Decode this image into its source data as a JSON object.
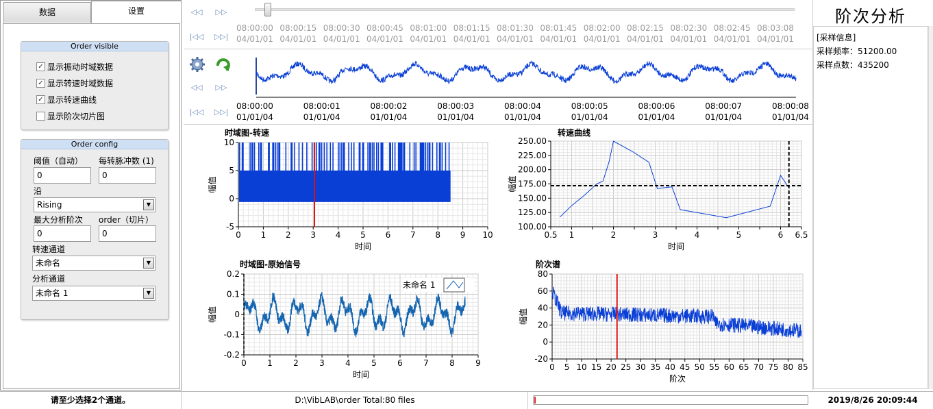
{
  "tabs": {
    "data_label": "数据",
    "settings_label": "设置"
  },
  "order_visible": {
    "title": "Order visible",
    "items": [
      {
        "label": "显示振动时域数据",
        "checked": true
      },
      {
        "label": "显示转速时域数据",
        "checked": true
      },
      {
        "label": "显示转速曲线",
        "checked": true
      },
      {
        "label": "显示阶次切片图",
        "checked": false
      }
    ]
  },
  "order_config": {
    "title": "Order config",
    "threshold_label": "阈值（自动）",
    "threshold_value": "0",
    "pulses_label": "每转脉冲数 (1)",
    "pulses_value": "0",
    "edge_label": "沿",
    "edge_value": "Rising",
    "max_order_label": "最大分析阶次",
    "max_order_value": "0",
    "order_slice_label": "order（切片）",
    "order_slice_value": "0",
    "speed_channel_label": "转速通道",
    "speed_channel_value": "未命名",
    "analysis_channel_label": "分析通道",
    "analysis_channel_value": "未命名 1"
  },
  "nav_top": {
    "ticks": [
      {
        "time": "08:00:00",
        "date": "04/01/01"
      },
      {
        "time": "08:00:15",
        "date": "04/01/01"
      },
      {
        "time": "08:00:30",
        "date": "04/01/01"
      },
      {
        "time": "08:00:45",
        "date": "04/01/01"
      },
      {
        "time": "08:01:00",
        "date": "04/01/01"
      },
      {
        "time": "08:01:15",
        "date": "04/01/01"
      },
      {
        "time": "08:01:30",
        "date": "04/01/01"
      },
      {
        "time": "08:01:45",
        "date": "04/01/01"
      },
      {
        "time": "08:02:00",
        "date": "04/01/01"
      },
      {
        "time": "08:02:15",
        "date": "04/01/01"
      },
      {
        "time": "08:02:30",
        "date": "04/01/01"
      },
      {
        "time": "08:02:45",
        "date": "04/01/01"
      },
      {
        "time": "08:03:08",
        "date": "04/01/01"
      }
    ]
  },
  "nav_wave": {
    "ticks": [
      {
        "time": "08:00:00",
        "date": "01/01/04"
      },
      {
        "time": "08:00:01",
        "date": "01/01/04"
      },
      {
        "time": "08:00:02",
        "date": "01/01/04"
      },
      {
        "time": "08:00:03",
        "date": "01/01/04"
      },
      {
        "time": "08:00:04",
        "date": "01/01/04"
      },
      {
        "time": "08:00:05",
        "date": "01/01/04"
      },
      {
        "time": "08:00:06",
        "date": "01/01/04"
      },
      {
        "time": "08:00:07",
        "date": "01/01/04"
      },
      {
        "time": "08:00:08",
        "date": "01/01/04"
      }
    ]
  },
  "info": {
    "title": "阶次分析",
    "header": "[采样信息]",
    "sample_rate": "采样频率：51200.00",
    "sample_count": "采样点数：435200"
  },
  "status": {
    "message": "请至少选择2个通道。",
    "path": "D:\\VibLAB\\order   Total:80 files",
    "progress": 0.005,
    "datetime": "2019/8/26  20:09:44"
  },
  "colors": {
    "series": "#0a3fd6",
    "cursor": "#e01010",
    "series2": "#1565b0"
  },
  "chart_data": [
    {
      "type": "line",
      "title": "时域图-转速",
      "xlabel": "时间",
      "ylabel": "幅值",
      "xlim": [
        0,
        10
      ],
      "ylim": [
        -5,
        10
      ],
      "xticks": [
        0,
        1,
        2,
        3,
        4,
        5,
        6,
        7,
        8,
        9,
        10
      ],
      "yticks": [
        -5,
        0,
        5,
        10
      ],
      "signal_end_x": 8.5,
      "pulse_levels": [
        0,
        5,
        10
      ],
      "cursor_x": 3.05
    },
    {
      "type": "line",
      "title": "转速曲线",
      "xlabel": "时间",
      "ylabel": "幅值",
      "xlim": [
        0.5,
        6.5
      ],
      "ylim": [
        100,
        250
      ],
      "xticks": [
        0.5,
        1,
        1.5,
        2,
        2.5,
        3,
        3.5,
        4,
        4.5,
        5,
        5.5,
        6,
        6.5
      ],
      "xtick_labels": [
        "0.5",
        "1",
        "",
        "2",
        "",
        "3",
        "",
        "4",
        "",
        "5",
        "",
        "6",
        "6.5"
      ],
      "yticks": [
        100,
        125,
        150,
        175,
        200,
        225,
        250
      ],
      "ytick_labels": [
        "100.00",
        "125.00",
        "150.00",
        "175.00",
        "200.00",
        "225.00",
        "250.00"
      ],
      "x": [
        0.72,
        1.0,
        1.3,
        1.6,
        1.75,
        1.9,
        2.0,
        2.45,
        2.85,
        3.05,
        3.4,
        3.6,
        4.7,
        5.75,
        6.0,
        6.2
      ],
      "y": [
        117,
        137,
        155,
        175,
        180,
        215,
        250,
        232,
        213,
        167,
        170,
        130,
        116,
        136,
        190,
        168
      ],
      "cursor_x": 6.2,
      "cursor_y": 172
    },
    {
      "type": "line",
      "title": "时域图-原始信号",
      "xlabel": "时间",
      "ylabel": "幅值",
      "xlim": [
        0,
        9
      ],
      "ylim": [
        -0.2,
        0.2
      ],
      "xticks": [
        0,
        1,
        2,
        3,
        4,
        5,
        6,
        7,
        8,
        9
      ],
      "yticks": [
        -0.2,
        -0.1,
        0,
        0.1,
        0.2
      ],
      "signal_end_x": 8.5,
      "series": [
        {
          "name": "未命名 1"
        }
      ]
    },
    {
      "type": "line",
      "title": "阶次谱",
      "xlabel": "阶次",
      "ylabel": "幅值",
      "xlim": [
        0,
        85
      ],
      "ylim": [
        -20,
        80
      ],
      "xticks": [
        0,
        5,
        10,
        15,
        20,
        25,
        30,
        35,
        40,
        45,
        50,
        55,
        60,
        65,
        70,
        75,
        80,
        85
      ],
      "yticks": [
        -20,
        0,
        20,
        40,
        60,
        80
      ],
      "cursor_x": 22,
      "signal_end_x": 84.5
    }
  ]
}
